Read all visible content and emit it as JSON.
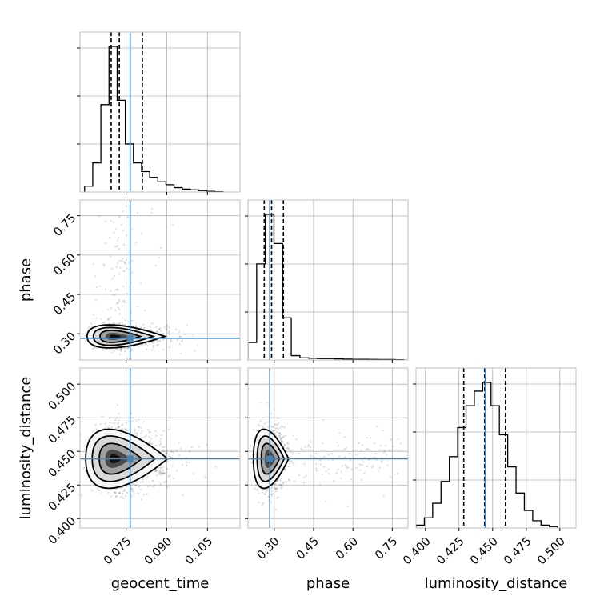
{
  "chart_data": {
    "type": "corner",
    "parameters": [
      "geocent_time",
      "phase",
      "luminosity_distance"
    ],
    "axis_labels": {
      "geocent_time": "geocent_time",
      "phase": "phase",
      "luminosity_distance": "luminosity_distance"
    },
    "ranges": {
      "geocent_time": [
        0.058,
        0.117
      ],
      "phase": [
        0.2,
        0.81
      ],
      "luminosity_distance": [
        0.393,
        0.512
      ]
    },
    "ticks": {
      "geocent_time": [
        0.075,
        0.09,
        0.105
      ],
      "phase": [
        0.3,
        0.45,
        0.6,
        0.75
      ],
      "luminosity_distance": [
        0.4,
        0.425,
        0.45,
        0.475,
        0.5
      ]
    },
    "tick_labels": {
      "geocent_time": [
        "0.075",
        "0.090",
        "0.105"
      ],
      "phase": [
        "0.30",
        "0.45",
        "0.60",
        "0.75"
      ],
      "luminosity_distance": [
        "0.400",
        "0.425",
        "0.450",
        "0.475",
        "0.500"
      ]
    },
    "truths": {
      "geocent_time": 0.0765,
      "phase": 0.283,
      "luminosity_distance": 0.4445
    },
    "quantiles": {
      "geocent_time": [
        0.0695,
        0.0725,
        0.081
      ],
      "phase": [
        0.262,
        0.29,
        0.335
      ],
      "luminosity_distance": [
        0.4285,
        0.444,
        0.4595
      ]
    },
    "histograms": {
      "geocent_time": {
        "edges": [
          0.0597,
          0.0627,
          0.0657,
          0.0687,
          0.0717,
          0.0747,
          0.0777,
          0.0807,
          0.0837,
          0.0867,
          0.0897,
          0.0927,
          0.0957,
          0.0987,
          0.1017,
          0.1047,
          0.1077,
          0.1107
        ],
        "counts": [
          0.04,
          0.2,
          0.6,
          1.0,
          0.63,
          0.33,
          0.2,
          0.14,
          0.1,
          0.07,
          0.05,
          0.03,
          0.02,
          0.015,
          0.01,
          0.005,
          0.002
        ]
      },
      "phase": {
        "edges": [
          0.2,
          0.233,
          0.266,
          0.299,
          0.332,
          0.365,
          0.398,
          0.431,
          0.464,
          0.497,
          0.53,
          0.563,
          0.596,
          0.629,
          0.662,
          0.695,
          0.728,
          0.761,
          0.794
        ],
        "counts": [
          0.12,
          0.66,
          1.0,
          0.8,
          0.29,
          0.03,
          0.015,
          0.012,
          0.01,
          0.01,
          0.008,
          0.006,
          0.005,
          0.005,
          0.004,
          0.003,
          0.003,
          0.002
        ]
      },
      "luminosity_distance": {
        "edges": [
          0.393,
          0.3992,
          0.4054,
          0.4116,
          0.4178,
          0.424,
          0.4302,
          0.4364,
          0.4426,
          0.4488,
          0.455,
          0.4612,
          0.4674,
          0.4736,
          0.4798,
          0.486,
          0.4922,
          0.4984
        ],
        "counts": [
          0.02,
          0.07,
          0.17,
          0.32,
          0.49,
          0.69,
          0.84,
          0.94,
          1.0,
          0.84,
          0.64,
          0.42,
          0.24,
          0.12,
          0.05,
          0.02,
          0.01
        ]
      }
    },
    "scatter_centers": {
      "phase_vs_geocent_time": {
        "x": 0.0705,
        "y": 0.29
      },
      "luminosity_distance_vs_geocent_time": {
        "x": 0.0705,
        "y": 0.4445
      },
      "luminosity_distance_vs_phase": {
        "x": 0.283,
        "y": 0.4445
      }
    },
    "grid": true,
    "colors": {
      "truth": "#4682b4",
      "quantile": "#000000",
      "histogram": "#000000",
      "scatter": "#000000",
      "grid": "#b0b0b0",
      "spine": "#bfbfbf"
    }
  }
}
